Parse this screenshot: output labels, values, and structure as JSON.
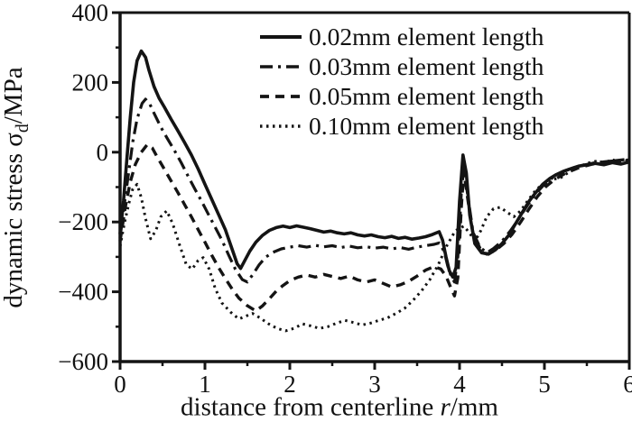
{
  "chart_data": {
    "type": "line",
    "title": "",
    "xlabel": {
      "prefix": "distance from centerline ",
      "italic": "r",
      "suffix": "/mm"
    },
    "ylabel": {
      "prefix": "dynamic stress σ",
      "sub": "d",
      "suffix": "/MPa"
    },
    "xlim": [
      0,
      6
    ],
    "ylim": [
      -600,
      400
    ],
    "x_ticks": [
      0,
      1,
      2,
      3,
      4,
      5,
      6
    ],
    "y_ticks": [
      400,
      200,
      0,
      -200,
      -400,
      -600
    ],
    "x_minor_step": 0.5,
    "y_minor_step": 100,
    "grid": false,
    "legend_position": "top-right",
    "line_color": "#141414",
    "background_color": "#ffffff",
    "series": [
      {
        "label": "0.02mm element length",
        "style": "solid",
        "points": [
          [
            0,
            -235
          ],
          [
            0.04,
            -140
          ],
          [
            0.08,
            -20
          ],
          [
            0.12,
            100
          ],
          [
            0.16,
            200
          ],
          [
            0.2,
            262
          ],
          [
            0.25,
            290
          ],
          [
            0.3,
            272
          ],
          [
            0.34,
            235
          ],
          [
            0.4,
            188
          ],
          [
            0.46,
            155
          ],
          [
            0.52,
            130
          ],
          [
            0.6,
            95
          ],
          [
            0.68,
            62
          ],
          [
            0.76,
            28
          ],
          [
            0.84,
            -8
          ],
          [
            0.92,
            -48
          ],
          [
            1.0,
            -92
          ],
          [
            1.08,
            -135
          ],
          [
            1.16,
            -178
          ],
          [
            1.24,
            -222
          ],
          [
            1.32,
            -278
          ],
          [
            1.38,
            -320
          ],
          [
            1.42,
            -333
          ],
          [
            1.47,
            -310
          ],
          [
            1.53,
            -283
          ],
          [
            1.6,
            -258
          ],
          [
            1.68,
            -238
          ],
          [
            1.76,
            -224
          ],
          [
            1.84,
            -216
          ],
          [
            1.92,
            -212
          ],
          [
            2.0,
            -216
          ],
          [
            2.08,
            -211
          ],
          [
            2.16,
            -215
          ],
          [
            2.24,
            -219
          ],
          [
            2.32,
            -224
          ],
          [
            2.4,
            -229
          ],
          [
            2.48,
            -226
          ],
          [
            2.56,
            -231
          ],
          [
            2.64,
            -234
          ],
          [
            2.72,
            -231
          ],
          [
            2.8,
            -237
          ],
          [
            2.88,
            -240
          ],
          [
            2.96,
            -237
          ],
          [
            3.04,
            -242
          ],
          [
            3.12,
            -245
          ],
          [
            3.2,
            -241
          ],
          [
            3.28,
            -247
          ],
          [
            3.36,
            -244
          ],
          [
            3.44,
            -249
          ],
          [
            3.52,
            -246
          ],
          [
            3.6,
            -242
          ],
          [
            3.68,
            -236
          ],
          [
            3.76,
            -228
          ],
          [
            3.8,
            -252
          ],
          [
            3.84,
            -300
          ],
          [
            3.88,
            -340
          ],
          [
            3.92,
            -358
          ],
          [
            3.96,
            -330
          ],
          [
            4.0,
            -140
          ],
          [
            4.04,
            -8
          ],
          [
            4.08,
            -60
          ],
          [
            4.12,
            -180
          ],
          [
            4.18,
            -262
          ],
          [
            4.26,
            -288
          ],
          [
            4.34,
            -292
          ],
          [
            4.42,
            -280
          ],
          [
            4.5,
            -262
          ],
          [
            4.58,
            -238
          ],
          [
            4.66,
            -205
          ],
          [
            4.74,
            -172
          ],
          [
            4.82,
            -140
          ],
          [
            4.9,
            -115
          ],
          [
            4.98,
            -92
          ],
          [
            5.06,
            -76
          ],
          [
            5.14,
            -64
          ],
          [
            5.22,
            -55
          ],
          [
            5.3,
            -48
          ],
          [
            5.4,
            -40
          ],
          [
            5.5,
            -36
          ],
          [
            5.6,
            -32
          ],
          [
            5.7,
            -36
          ],
          [
            5.8,
            -30
          ],
          [
            5.9,
            -34
          ],
          [
            6.0,
            -28
          ]
        ]
      },
      {
        "label": "0.03mm element length",
        "style": "dash-dot",
        "points": [
          [
            0,
            -245
          ],
          [
            0.05,
            -150
          ],
          [
            0.1,
            -60
          ],
          [
            0.15,
            30
          ],
          [
            0.2,
            95
          ],
          [
            0.26,
            140
          ],
          [
            0.3,
            152
          ],
          [
            0.35,
            138
          ],
          [
            0.4,
            112
          ],
          [
            0.48,
            72
          ],
          [
            0.56,
            38
          ],
          [
            0.64,
            5
          ],
          [
            0.72,
            -30
          ],
          [
            0.8,
            -68
          ],
          [
            0.88,
            -105
          ],
          [
            0.96,
            -140
          ],
          [
            1.04,
            -178
          ],
          [
            1.12,
            -215
          ],
          [
            1.2,
            -252
          ],
          [
            1.28,
            -295
          ],
          [
            1.36,
            -336
          ],
          [
            1.44,
            -365
          ],
          [
            1.5,
            -372
          ],
          [
            1.56,
            -352
          ],
          [
            1.64,
            -322
          ],
          [
            1.72,
            -300
          ],
          [
            1.8,
            -287
          ],
          [
            1.9,
            -277
          ],
          [
            2.0,
            -272
          ],
          [
            2.1,
            -268
          ],
          [
            2.2,
            -272
          ],
          [
            2.3,
            -267
          ],
          [
            2.4,
            -271
          ],
          [
            2.5,
            -268
          ],
          [
            2.6,
            -273
          ],
          [
            2.7,
            -269
          ],
          [
            2.8,
            -274
          ],
          [
            2.9,
            -271
          ],
          [
            3.0,
            -275
          ],
          [
            3.1,
            -272
          ],
          [
            3.2,
            -277
          ],
          [
            3.3,
            -273
          ],
          [
            3.4,
            -278
          ],
          [
            3.5,
            -272
          ],
          [
            3.6,
            -268
          ],
          [
            3.7,
            -264
          ],
          [
            3.76,
            -260
          ],
          [
            3.82,
            -285
          ],
          [
            3.86,
            -325
          ],
          [
            3.9,
            -355
          ],
          [
            3.94,
            -372
          ],
          [
            3.98,
            -300
          ],
          [
            4.02,
            -120
          ],
          [
            4.05,
            -45
          ],
          [
            4.1,
            -130
          ],
          [
            4.16,
            -230
          ],
          [
            4.24,
            -272
          ],
          [
            4.32,
            -288
          ],
          [
            4.4,
            -276
          ],
          [
            4.5,
            -255
          ],
          [
            4.6,
            -225
          ],
          [
            4.7,
            -190
          ],
          [
            4.8,
            -152
          ],
          [
            4.9,
            -118
          ],
          [
            5.0,
            -92
          ],
          [
            5.1,
            -72
          ],
          [
            5.2,
            -58
          ],
          [
            5.3,
            -48
          ],
          [
            5.45,
            -38
          ],
          [
            5.6,
            -30
          ],
          [
            5.75,
            -26
          ],
          [
            5.9,
            -24
          ],
          [
            6.0,
            -22
          ]
        ]
      },
      {
        "label": "0.05mm element length",
        "style": "dashed",
        "points": [
          [
            0,
            -255
          ],
          [
            0.06,
            -160
          ],
          [
            0.12,
            -85
          ],
          [
            0.18,
            -35
          ],
          [
            0.25,
            0
          ],
          [
            0.32,
            22
          ],
          [
            0.38,
            12
          ],
          [
            0.44,
            -15
          ],
          [
            0.52,
            -48
          ],
          [
            0.6,
            -82
          ],
          [
            0.68,
            -115
          ],
          [
            0.76,
            -150
          ],
          [
            0.84,
            -185
          ],
          [
            0.92,
            -222
          ],
          [
            1.0,
            -258
          ],
          [
            1.08,
            -295
          ],
          [
            1.16,
            -330
          ],
          [
            1.24,
            -362
          ],
          [
            1.32,
            -392
          ],
          [
            1.4,
            -418
          ],
          [
            1.5,
            -440
          ],
          [
            1.6,
            -455
          ],
          [
            1.68,
            -440
          ],
          [
            1.76,
            -420
          ],
          [
            1.84,
            -398
          ],
          [
            1.92,
            -382
          ],
          [
            2.0,
            -368
          ],
          [
            2.1,
            -358
          ],
          [
            2.2,
            -352
          ],
          [
            2.3,
            -358
          ],
          [
            2.4,
            -350
          ],
          [
            2.5,
            -356
          ],
          [
            2.6,
            -362
          ],
          [
            2.7,
            -355
          ],
          [
            2.8,
            -366
          ],
          [
            2.9,
            -372
          ],
          [
            3.0,
            -366
          ],
          [
            3.1,
            -376
          ],
          [
            3.2,
            -386
          ],
          [
            3.3,
            -380
          ],
          [
            3.4,
            -370
          ],
          [
            3.5,
            -355
          ],
          [
            3.6,
            -338
          ],
          [
            3.7,
            -328
          ],
          [
            3.78,
            -335
          ],
          [
            3.84,
            -355
          ],
          [
            3.9,
            -390
          ],
          [
            3.94,
            -412
          ],
          [
            3.98,
            -360
          ],
          [
            4.02,
            -160
          ],
          [
            4.05,
            -55
          ],
          [
            4.1,
            -140
          ],
          [
            4.16,
            -235
          ],
          [
            4.24,
            -275
          ],
          [
            4.32,
            -292
          ],
          [
            4.42,
            -282
          ],
          [
            4.52,
            -262
          ],
          [
            4.62,
            -235
          ],
          [
            4.72,
            -200
          ],
          [
            4.82,
            -162
          ],
          [
            4.92,
            -126
          ],
          [
            5.02,
            -98
          ],
          [
            5.12,
            -78
          ],
          [
            5.25,
            -60
          ],
          [
            5.4,
            -45
          ],
          [
            5.55,
            -35
          ],
          [
            5.7,
            -28
          ],
          [
            5.85,
            -24
          ],
          [
            6.0,
            -20
          ]
        ]
      },
      {
        "label": "0.10mm element length",
        "style": "dotted",
        "points": [
          [
            0,
            -270
          ],
          [
            0.05,
            -205
          ],
          [
            0.1,
            -150
          ],
          [
            0.15,
            -105
          ],
          [
            0.2,
            -92
          ],
          [
            0.25,
            -130
          ],
          [
            0.3,
            -190
          ],
          [
            0.36,
            -248
          ],
          [
            0.42,
            -225
          ],
          [
            0.48,
            -185
          ],
          [
            0.55,
            -168
          ],
          [
            0.62,
            -205
          ],
          [
            0.7,
            -265
          ],
          [
            0.78,
            -322
          ],
          [
            0.85,
            -335
          ],
          [
            0.92,
            -310
          ],
          [
            0.98,
            -302
          ],
          [
            1.05,
            -335
          ],
          [
            1.12,
            -390
          ],
          [
            1.2,
            -432
          ],
          [
            1.3,
            -458
          ],
          [
            1.4,
            -478
          ],
          [
            1.48,
            -470
          ],
          [
            1.56,
            -462
          ],
          [
            1.65,
            -475
          ],
          [
            1.75,
            -492
          ],
          [
            1.85,
            -505
          ],
          [
            1.95,
            -512
          ],
          [
            2.05,
            -505
          ],
          [
            2.15,
            -492
          ],
          [
            2.25,
            -498
          ],
          [
            2.35,
            -505
          ],
          [
            2.45,
            -500
          ],
          [
            2.55,
            -490
          ],
          [
            2.65,
            -482
          ],
          [
            2.75,
            -488
          ],
          [
            2.85,
            -495
          ],
          [
            2.95,
            -490
          ],
          [
            3.05,
            -482
          ],
          [
            3.15,
            -475
          ],
          [
            3.25,
            -462
          ],
          [
            3.35,
            -448
          ],
          [
            3.45,
            -425
          ],
          [
            3.55,
            -398
          ],
          [
            3.65,
            -365
          ],
          [
            3.75,
            -322
          ],
          [
            3.85,
            -268
          ],
          [
            3.95,
            -225
          ],
          [
            4.05,
            -212
          ],
          [
            4.12,
            -232
          ],
          [
            4.18,
            -255
          ],
          [
            4.25,
            -225
          ],
          [
            4.32,
            -185
          ],
          [
            4.4,
            -162
          ],
          [
            4.48,
            -158
          ],
          [
            4.56,
            -172
          ],
          [
            4.64,
            -185
          ],
          [
            4.72,
            -168
          ],
          [
            4.8,
            -140
          ],
          [
            4.9,
            -108
          ],
          [
            5.0,
            -88
          ],
          [
            5.1,
            -78
          ],
          [
            5.2,
            -72
          ],
          [
            5.3,
            -55
          ],
          [
            5.4,
            -42
          ],
          [
            5.5,
            -32
          ],
          [
            5.6,
            -26
          ],
          [
            5.7,
            -30
          ],
          [
            5.8,
            -22
          ],
          [
            5.9,
            -26
          ],
          [
            6.0,
            -24
          ]
        ]
      }
    ]
  }
}
